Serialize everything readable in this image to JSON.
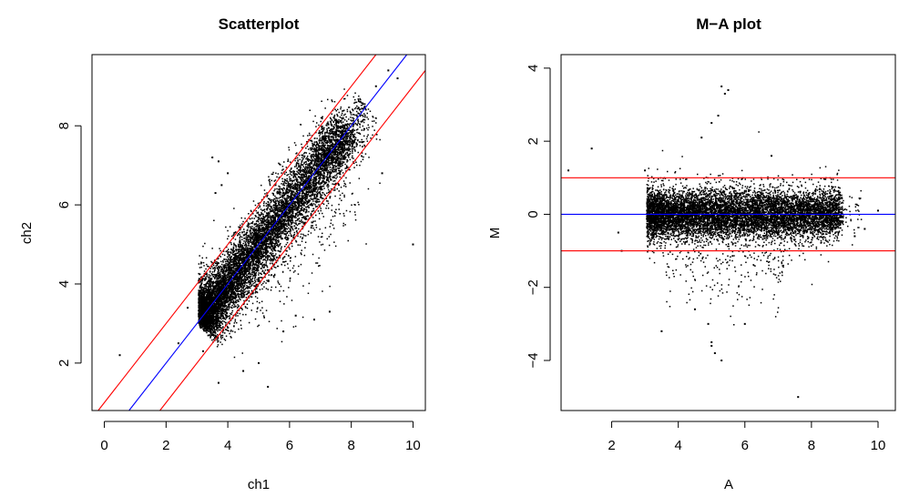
{
  "chart_data": [
    {
      "type": "scatter",
      "title": "Scatterplot",
      "xlabel": "ch1",
      "ylabel": "ch2",
      "xlim": [
        -0.4,
        10.4
      ],
      "ylim": [
        0.8,
        9.8
      ],
      "xticks": [
        "0",
        "2",
        "4",
        "6",
        "8",
        "10"
      ],
      "yticks": [
        "2",
        "4",
        "6",
        "8"
      ],
      "point_cloud": {
        "description": "dense cloud of about 9000 points along the identity line",
        "x_range": [
          3.0,
          8.5
        ],
        "fit": "y = x"
      },
      "lines": [
        {
          "name": "identity",
          "intercept": 0,
          "slope": 1,
          "color": "#0000ff"
        },
        {
          "name": "upper bound",
          "intercept": 1,
          "slope": 1,
          "color": "#ff0000"
        },
        {
          "name": "lower bound",
          "intercept": -1,
          "slope": 1,
          "color": "#ff0000"
        }
      ],
      "outliers": [
        [
          3.5,
          7.2
        ],
        [
          3.7,
          7.1
        ],
        [
          3.8,
          6.5
        ],
        [
          3.6,
          6.3
        ],
        [
          4.0,
          6.8
        ],
        [
          3.7,
          1.5
        ],
        [
          4.5,
          1.8
        ],
        [
          5.0,
          2.0
        ],
        [
          5.3,
          1.4
        ],
        [
          5.8,
          2.8
        ],
        [
          6.2,
          3.2
        ],
        [
          6.8,
          3.1
        ],
        [
          7.3,
          3.3
        ],
        [
          9.0,
          6.8
        ],
        [
          10.0,
          5.0
        ],
        [
          9.2,
          9.4
        ],
        [
          0.5,
          2.2
        ],
        [
          2.7,
          3.4
        ],
        [
          2.4,
          2.5
        ],
        [
          3.2,
          2.3
        ],
        [
          8.8,
          9.0
        ],
        [
          9.5,
          9.2
        ]
      ],
      "colors": {
        "points": "#000000",
        "frame": "#000000"
      }
    },
    {
      "type": "scatter",
      "title": "M−A plot",
      "xlabel": "A",
      "ylabel": "M",
      "xlim": [
        0.48,
        10.52
      ],
      "ylim": [
        -5.37,
        4.37
      ],
      "xticks": [
        "2",
        "4",
        "6",
        "8",
        "10"
      ],
      "yticks": [
        "−4",
        "−2",
        "0",
        "2",
        "4"
      ],
      "point_cloud": {
        "description": "dense cloud of about 9000 points centred on M = 0",
        "x_range": [
          3.0,
          9.5
        ],
        "fit": "M = 0"
      },
      "lines": [
        {
          "name": "M = 0",
          "y": 0,
          "color": "#0000ff"
        },
        {
          "name": "M = 1",
          "y": 1,
          "color": "#ff0000"
        },
        {
          "name": "M = -1",
          "y": -1,
          "color": "#ff0000"
        }
      ],
      "outliers": [
        [
          0.7,
          1.2
        ],
        [
          1.4,
          1.8
        ],
        [
          5.3,
          3.5
        ],
        [
          5.4,
          3.3
        ],
        [
          5.5,
          3.4
        ],
        [
          5.0,
          2.5
        ],
        [
          5.2,
          2.7
        ],
        [
          4.7,
          2.1
        ],
        [
          4.9,
          -3.0
        ],
        [
          5.0,
          -3.6
        ],
        [
          5.1,
          -3.8
        ],
        [
          5.3,
          -4.0
        ],
        [
          5.0,
          -3.5
        ],
        [
          3.5,
          -3.2
        ],
        [
          7.6,
          -5.0
        ],
        [
          6.0,
          -3.0
        ],
        [
          4.5,
          -2.6
        ],
        [
          2.3,
          -1.0
        ],
        [
          2.2,
          -0.5
        ],
        [
          9.6,
          -0.4
        ],
        [
          9.3,
          -0.6
        ],
        [
          10.0,
          0.1
        ],
        [
          3.0,
          1.2
        ],
        [
          6.8,
          1.6
        ]
      ],
      "colors": {
        "points": "#000000",
        "frame": "#000000"
      }
    }
  ]
}
